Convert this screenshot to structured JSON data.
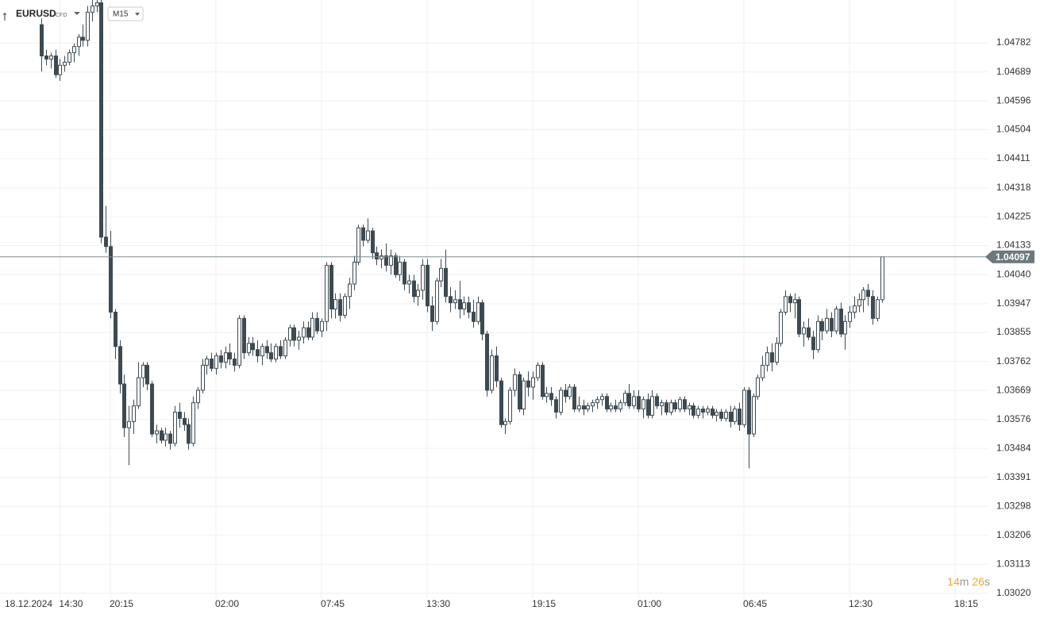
{
  "header": {
    "symbol": "EURUSD",
    "instrument_type": "CFD",
    "timeframe": "M15"
  },
  "countdown": {
    "minutes": "14",
    "minutes_unit": "m",
    "seconds": "26",
    "seconds_unit": "s"
  },
  "chart_data": {
    "type": "candlestick",
    "date_label": "18.12.2024",
    "up_color": "#ffffff",
    "down_color": "#3d4a52",
    "outline_color": "#3d4a52",
    "grid": true,
    "last_price": 1.04097,
    "xlim": [
      -9.04,
      206.25
    ],
    "xticks": [
      {
        "value": 4,
        "label": "14:30"
      },
      {
        "value": 15,
        "label": "20:15"
      },
      {
        "value": 38,
        "label": "02:00"
      },
      {
        "value": 61,
        "label": "07:45"
      },
      {
        "value": 84,
        "label": "13:30"
      },
      {
        "value": 107,
        "label": "19:15"
      },
      {
        "value": 130,
        "label": "01:00"
      },
      {
        "value": 153,
        "label": "06:45"
      },
      {
        "value": 176,
        "label": "12:30"
      },
      {
        "value": 199,
        "label": "18:15"
      }
    ],
    "ylim": [
      1.03002,
      1.04919
    ],
    "yticks": [
      {
        "value": 1.04782,
        "label": "1.04782"
      },
      {
        "value": 1.04689,
        "label": "1.04689"
      },
      {
        "value": 1.04596,
        "label": "1.04596"
      },
      {
        "value": 1.04504,
        "label": "1.04504"
      },
      {
        "value": 1.04411,
        "label": "1.04411"
      },
      {
        "value": 1.04318,
        "label": "1.04318"
      },
      {
        "value": 1.04225,
        "label": "1.04225"
      },
      {
        "value": 1.04133,
        "label": "1.04133"
      },
      {
        "value": 1.0404,
        "label": "1.04040"
      },
      {
        "value": 1.03947,
        "label": "1.03947"
      },
      {
        "value": 1.03855,
        "label": "1.03855"
      },
      {
        "value": 1.03762,
        "label": "1.03762"
      },
      {
        "value": 1.03669,
        "label": "1.03669"
      },
      {
        "value": 1.03576,
        "label": "1.03576"
      },
      {
        "value": 1.03484,
        "label": "1.03484"
      },
      {
        "value": 1.03391,
        "label": "1.03391"
      },
      {
        "value": 1.03298,
        "label": "1.03298"
      },
      {
        "value": 1.03206,
        "label": "1.03206"
      },
      {
        "value": 1.03113,
        "label": "1.03113"
      },
      {
        "value": 1.0302,
        "label": "1.03020"
      }
    ],
    "ohlc": [
      [
        1.0484,
        1.0486,
        1.0469,
        1.0474
      ],
      [
        1.0474,
        1.0476,
        1.0471,
        1.0473
      ],
      [
        1.0473,
        1.0475,
        1.047,
        1.0474
      ],
      [
        1.0474,
        1.0476,
        1.0467,
        1.0468
      ],
      [
        1.0468,
        1.0473,
        1.0466,
        1.0471
      ],
      [
        1.0471,
        1.0474,
        1.0469,
        1.0472
      ],
      [
        1.0472,
        1.0476,
        1.0471,
        1.0475
      ],
      [
        1.0475,
        1.0478,
        1.0472,
        1.0477
      ],
      [
        1.0477,
        1.0481,
        1.0474,
        1.048
      ],
      [
        1.048,
        1.0484,
        1.0477,
        1.0479
      ],
      [
        1.0479,
        1.049,
        1.0477,
        1.0488
      ],
      [
        1.0488,
        1.0492,
        1.0485,
        1.049
      ],
      [
        1.049,
        1.0492,
        1.0488,
        1.0491
      ],
      [
        1.0491,
        1.0492,
        1.0414,
        1.0416
      ],
      [
        1.0416,
        1.0426,
        1.0411,
        1.0413
      ],
      [
        1.0413,
        1.0418,
        1.039,
        1.0392
      ],
      [
        1.0392,
        1.0393,
        1.0377,
        1.0381
      ],
      [
        1.0381,
        1.0383,
        1.0366,
        1.0369
      ],
      [
        1.0369,
        1.0372,
        1.0352,
        1.0355
      ],
      [
        1.0355,
        1.0362,
        1.0343,
        1.0357
      ],
      [
        1.0357,
        1.0364,
        1.0353,
        1.0362
      ],
      [
        1.0362,
        1.0376,
        1.0361,
        1.0371
      ],
      [
        1.0371,
        1.0376,
        1.0368,
        1.0375
      ],
      [
        1.0375,
        1.0376,
        1.0367,
        1.0369
      ],
      [
        1.0369,
        1.037,
        1.0352,
        1.0353
      ],
      [
        1.0353,
        1.0356,
        1.035,
        1.0354
      ],
      [
        1.0354,
        1.0355,
        1.035,
        1.0351
      ],
      [
        1.0351,
        1.0355,
        1.0349,
        1.0353
      ],
      [
        1.0353,
        1.0354,
        1.0348,
        1.035
      ],
      [
        1.035,
        1.0362,
        1.0349,
        1.036
      ],
      [
        1.036,
        1.0363,
        1.0355,
        1.0358
      ],
      [
        1.0358,
        1.036,
        1.0354,
        1.0356
      ],
      [
        1.0356,
        1.0358,
        1.0348,
        1.035
      ],
      [
        1.035,
        1.0365,
        1.0349,
        1.0363
      ],
      [
        1.0363,
        1.0368,
        1.0361,
        1.0367
      ],
      [
        1.0367,
        1.0377,
        1.0366,
        1.0375
      ],
      [
        1.0375,
        1.0378,
        1.0372,
        1.0377
      ],
      [
        1.0377,
        1.0379,
        1.0373,
        1.0374
      ],
      [
        1.0374,
        1.0379,
        1.0372,
        1.0378
      ],
      [
        1.0378,
        1.038,
        1.0374,
        1.0376
      ],
      [
        1.0376,
        1.0381,
        1.0374,
        1.0379
      ],
      [
        1.0379,
        1.0382,
        1.0375,
        1.0377
      ],
      [
        1.0377,
        1.0379,
        1.0373,
        1.0375
      ],
      [
        1.0375,
        1.0391,
        1.0374,
        1.039
      ],
      [
        1.039,
        1.0391,
        1.0377,
        1.0379
      ],
      [
        1.0379,
        1.0384,
        1.0378,
        1.0382
      ],
      [
        1.0382,
        1.0384,
        1.0378,
        1.038
      ],
      [
        1.038,
        1.0383,
        1.0376,
        1.0378
      ],
      [
        1.0378,
        1.0382,
        1.0375,
        1.0381
      ],
      [
        1.0381,
        1.0383,
        1.0377,
        1.0379
      ],
      [
        1.0379,
        1.0382,
        1.0376,
        1.0377
      ],
      [
        1.0377,
        1.0382,
        1.0376,
        1.0381
      ],
      [
        1.0381,
        1.0383,
        1.0377,
        1.0378
      ],
      [
        1.0378,
        1.0384,
        1.0377,
        1.0383
      ],
      [
        1.0383,
        1.0388,
        1.0381,
        1.0387
      ],
      [
        1.0387,
        1.0388,
        1.0381,
        1.0383
      ],
      [
        1.0383,
        1.0386,
        1.038,
        1.0384
      ],
      [
        1.0384,
        1.0389,
        1.0382,
        1.0387
      ],
      [
        1.0387,
        1.0389,
        1.0383,
        1.0384
      ],
      [
        1.0384,
        1.0392,
        1.0383,
        1.039
      ],
      [
        1.039,
        1.0392,
        1.0385,
        1.0386
      ],
      [
        1.0386,
        1.039,
        1.0384,
        1.0389
      ],
      [
        1.0389,
        1.0408,
        1.0386,
        1.0407
      ],
      [
        1.0407,
        1.0408,
        1.039,
        1.0393
      ],
      [
        1.0393,
        1.0398,
        1.039,
        1.0396
      ],
      [
        1.0396,
        1.0398,
        1.0389,
        1.0391
      ],
      [
        1.0391,
        1.0398,
        1.039,
        1.0397
      ],
      [
        1.0397,
        1.0403,
        1.0393,
        1.0401
      ],
      [
        1.0401,
        1.041,
        1.0399,
        1.0408
      ],
      [
        1.0408,
        1.042,
        1.0407,
        1.0419
      ],
      [
        1.0419,
        1.042,
        1.0413,
        1.0415
      ],
      [
        1.0415,
        1.0422,
        1.0414,
        1.0418
      ],
      [
        1.0418,
        1.0419,
        1.0409,
        1.0411
      ],
      [
        1.0411,
        1.0413,
        1.0407,
        1.0409
      ],
      [
        1.0409,
        1.0412,
        1.0406,
        1.041
      ],
      [
        1.041,
        1.0414,
        1.0405,
        1.0407
      ],
      [
        1.0407,
        1.0412,
        1.0404,
        1.041
      ],
      [
        1.041,
        1.0411,
        1.0403,
        1.0404
      ],
      [
        1.0404,
        1.041,
        1.0402,
        1.0408
      ],
      [
        1.0408,
        1.0409,
        1.0399,
        1.0401
      ],
      [
        1.0401,
        1.0404,
        1.0398,
        1.0402
      ],
      [
        1.0402,
        1.0404,
        1.0395,
        1.0397
      ],
      [
        1.0397,
        1.0401,
        1.0394,
        1.0399
      ],
      [
        1.0399,
        1.0409,
        1.0396,
        1.0407
      ],
      [
        1.0407,
        1.0409,
        1.0392,
        1.0394
      ],
      [
        1.0394,
        1.0397,
        1.0386,
        1.0389
      ],
      [
        1.0389,
        1.0403,
        1.0388,
        1.0402
      ],
      [
        1.0402,
        1.0409,
        1.04,
        1.0406
      ],
      [
        1.0406,
        1.0412,
        1.0395,
        1.0397
      ],
      [
        1.0397,
        1.04,
        1.0392,
        1.0395
      ],
      [
        1.0395,
        1.0399,
        1.0393,
        1.0396
      ],
      [
        1.0396,
        1.0402,
        1.039,
        1.0393
      ],
      [
        1.0393,
        1.0397,
        1.0391,
        1.0395
      ],
      [
        1.0395,
        1.0397,
        1.039,
        1.0392
      ],
      [
        1.0392,
        1.0396,
        1.0387,
        1.0389
      ],
      [
        1.0389,
        1.0397,
        1.0388,
        1.0395
      ],
      [
        1.0395,
        1.0396,
        1.0383,
        1.0385
      ],
      [
        1.0385,
        1.0386,
        1.0365,
        1.0367
      ],
      [
        1.0367,
        1.038,
        1.0366,
        1.0378
      ],
      [
        1.0378,
        1.0381,
        1.0368,
        1.037
      ],
      [
        1.037,
        1.0371,
        1.0355,
        1.0356
      ],
      [
        1.0356,
        1.0358,
        1.0353,
        1.0357
      ],
      [
        1.0357,
        1.0368,
        1.0356,
        1.0367
      ],
      [
        1.0367,
        1.0374,
        1.0365,
        1.0372
      ],
      [
        1.0372,
        1.0373,
        1.036,
        1.0361
      ],
      [
        1.0361,
        1.0371,
        1.0359,
        1.037
      ],
      [
        1.037,
        1.0373,
        1.0365,
        1.0368
      ],
      [
        1.0368,
        1.0373,
        1.0364,
        1.0371
      ],
      [
        1.0371,
        1.0376,
        1.037,
        1.0375
      ],
      [
        1.0375,
        1.0376,
        1.0364,
        1.0365
      ],
      [
        1.0365,
        1.0368,
        1.0363,
        1.0366
      ],
      [
        1.0366,
        1.0368,
        1.0362,
        1.0364
      ],
      [
        1.0364,
        1.0365,
        1.0358,
        1.036
      ],
      [
        1.036,
        1.0368,
        1.0359,
        1.0367
      ],
      [
        1.0367,
        1.0369,
        1.0363,
        1.0365
      ],
      [
        1.0365,
        1.0369,
        1.0364,
        1.0368
      ],
      [
        1.0368,
        1.0369,
        1.036,
        1.0361
      ],
      [
        1.0361,
        1.0365,
        1.036,
        1.0362
      ],
      [
        1.0362,
        1.0364,
        1.0359,
        1.0361
      ],
      [
        1.0361,
        1.0363,
        1.036,
        1.0362
      ],
      [
        1.0362,
        1.0364,
        1.036,
        1.0363
      ],
      [
        1.0363,
        1.0365,
        1.0361,
        1.0364
      ],
      [
        1.0364,
        1.0366,
        1.0362,
        1.0365
      ],
      [
        1.0365,
        1.0366,
        1.036,
        1.0361
      ],
      [
        1.0361,
        1.0363,
        1.036,
        1.0362
      ],
      [
        1.0362,
        1.0364,
        1.036,
        1.0361
      ],
      [
        1.0361,
        1.0364,
        1.036,
        1.0363
      ],
      [
        1.0363,
        1.0367,
        1.0362,
        1.0366
      ],
      [
        1.0366,
        1.0369,
        1.0361,
        1.0362
      ],
      [
        1.0362,
        1.0367,
        1.0361,
        1.0365
      ],
      [
        1.0365,
        1.0367,
        1.036,
        1.0361
      ],
      [
        1.0361,
        1.0365,
        1.0358,
        1.0364
      ],
      [
        1.0364,
        1.0366,
        1.0358,
        1.0359
      ],
      [
        1.0359,
        1.0367,
        1.0358,
        1.0365
      ],
      [
        1.0365,
        1.0366,
        1.0361,
        1.0362
      ],
      [
        1.0362,
        1.0364,
        1.0359,
        1.0363
      ],
      [
        1.0363,
        1.0364,
        1.0359,
        1.036
      ],
      [
        1.036,
        1.0364,
        1.0359,
        1.0363
      ],
      [
        1.0363,
        1.0364,
        1.036,
        1.0361
      ],
      [
        1.0361,
        1.0365,
        1.036,
        1.0364
      ],
      [
        1.0364,
        1.0365,
        1.036,
        1.0361
      ],
      [
        1.0361,
        1.0363,
        1.0359,
        1.0362
      ],
      [
        1.0362,
        1.0363,
        1.0358,
        1.0359
      ],
      [
        1.0359,
        1.0362,
        1.0358,
        1.0361
      ],
      [
        1.0361,
        1.0362,
        1.0358,
        1.036
      ],
      [
        1.036,
        1.0362,
        1.0359,
        1.0361
      ],
      [
        1.0361,
        1.0362,
        1.0358,
        1.0359
      ],
      [
        1.0359,
        1.0361,
        1.0357,
        1.036
      ],
      [
        1.036,
        1.0361,
        1.0357,
        1.0358
      ],
      [
        1.0358,
        1.0361,
        1.0357,
        1.036
      ],
      [
        1.036,
        1.0362,
        1.0355,
        1.0357
      ],
      [
        1.0357,
        1.0362,
        1.0356,
        1.0361
      ],
      [
        1.0361,
        1.0363,
        1.0354,
        1.0356
      ],
      [
        1.0356,
        1.0368,
        1.0355,
        1.0367
      ],
      [
        1.0367,
        1.0368,
        1.0342,
        1.0353
      ],
      [
        1.0353,
        1.0366,
        1.0352,
        1.0365
      ],
      [
        1.0365,
        1.0372,
        1.0364,
        1.0371
      ],
      [
        1.0371,
        1.0378,
        1.037,
        1.0375
      ],
      [
        1.0375,
        1.0381,
        1.0373,
        1.0379
      ],
      [
        1.0379,
        1.0382,
        1.0373,
        1.0376
      ],
      [
        1.0376,
        1.0384,
        1.0375,
        1.0382
      ],
      [
        1.0382,
        1.0393,
        1.0381,
        1.0392
      ],
      [
        1.0392,
        1.0399,
        1.0391,
        1.0397
      ],
      [
        1.0397,
        1.0398,
        1.0392,
        1.0395
      ],
      [
        1.0395,
        1.0398,
        1.039,
        1.0396
      ],
      [
        1.0396,
        1.0397,
        1.0384,
        1.0385
      ],
      [
        1.0385,
        1.0389,
        1.0381,
        1.0387
      ],
      [
        1.0387,
        1.039,
        1.0383,
        1.0384
      ],
      [
        1.0384,
        1.0386,
        1.0377,
        1.038
      ],
      [
        1.038,
        1.0391,
        1.0379,
        1.0389
      ],
      [
        1.0389,
        1.039,
        1.0383,
        1.0386
      ],
      [
        1.0386,
        1.0393,
        1.0385,
        1.039
      ],
      [
        1.039,
        1.0392,
        1.0384,
        1.0386
      ],
      [
        1.0386,
        1.0394,
        1.0385,
        1.0393
      ],
      [
        1.0393,
        1.0395,
        1.0384,
        1.0385
      ],
      [
        1.0385,
        1.0391,
        1.038,
        1.0389
      ],
      [
        1.0389,
        1.0394,
        1.0387,
        1.0392
      ],
      [
        1.0392,
        1.0397,
        1.039,
        1.0394
      ],
      [
        1.0394,
        1.0398,
        1.0392,
        1.0396
      ],
      [
        1.0396,
        1.04,
        1.0392,
        1.0399
      ],
      [
        1.0399,
        1.0401,
        1.0394,
        1.0397
      ],
      [
        1.0397,
        1.0399,
        1.0388,
        1.039
      ],
      [
        1.039,
        1.0397,
        1.0389,
        1.0396
      ],
      [
        1.0396,
        1.04097,
        1.0395,
        1.04097
      ]
    ]
  }
}
